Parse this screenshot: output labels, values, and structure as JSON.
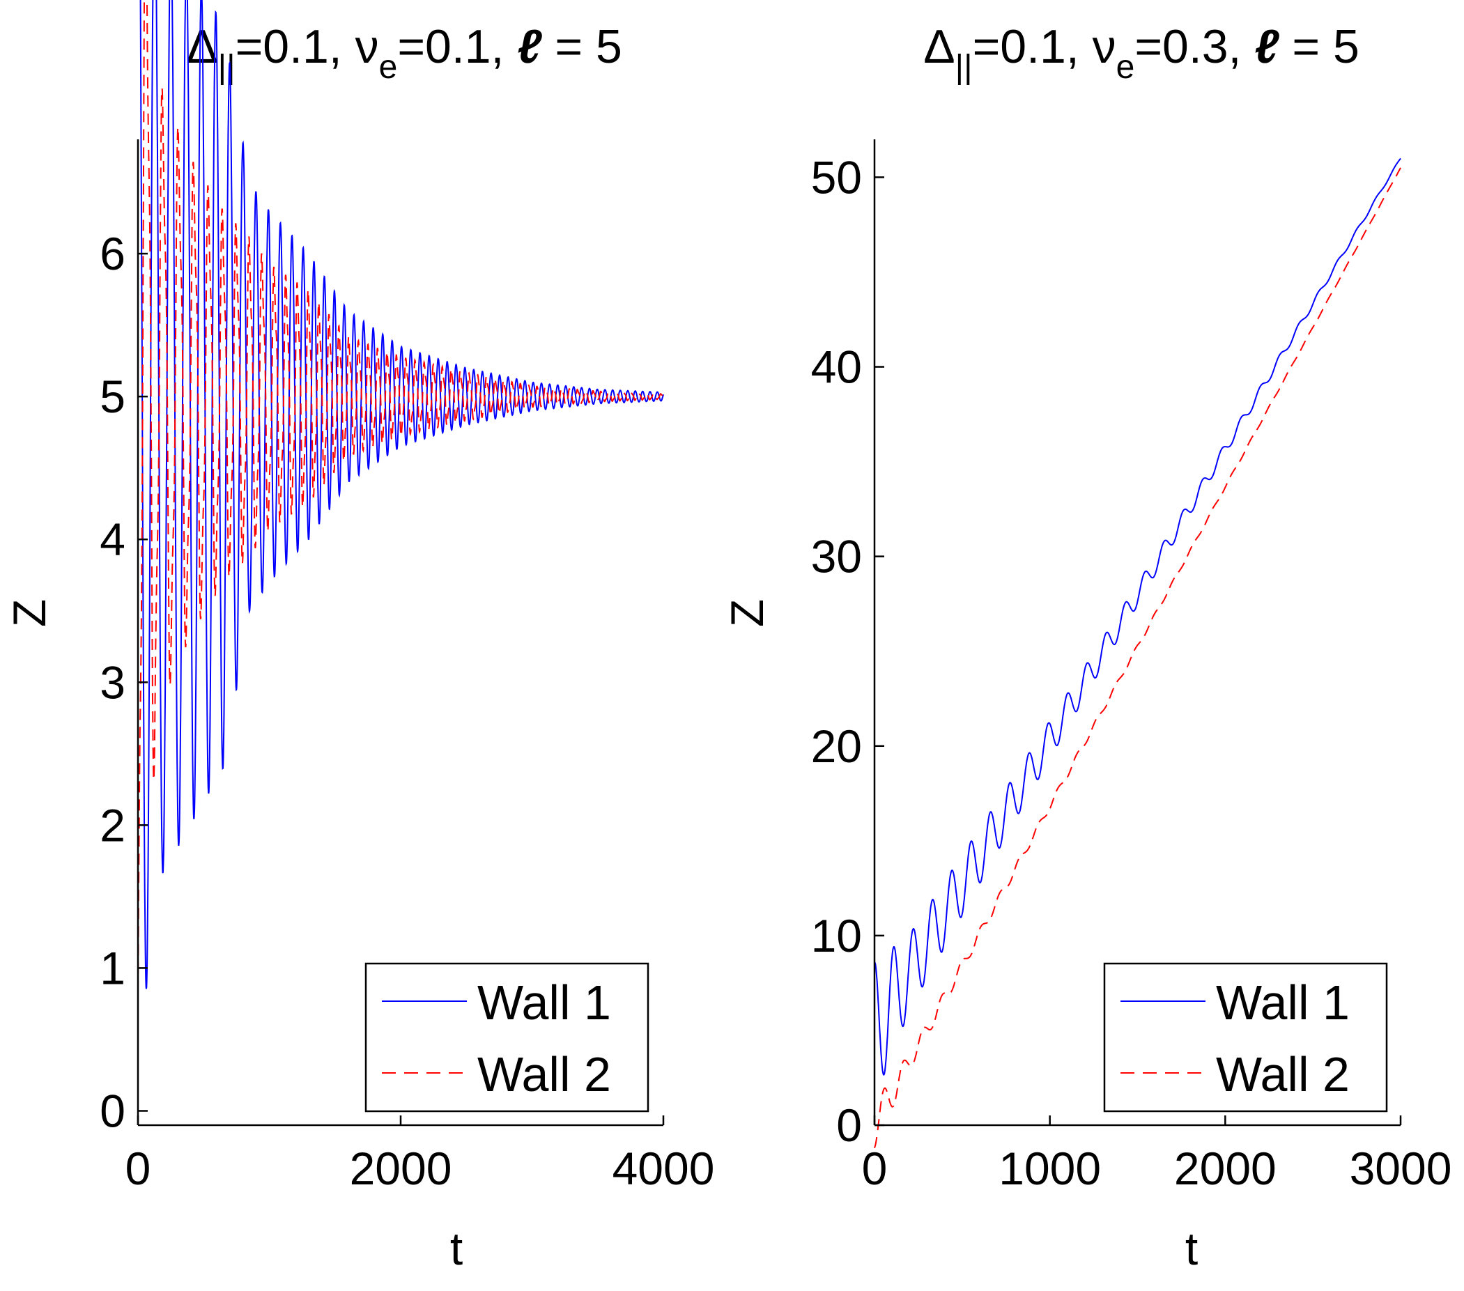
{
  "chart_data": [
    {
      "type": "line",
      "title": {
        "delta": "Δ",
        "delta_sub": "||",
        "p1": "=0.1, ",
        "nu": "ν",
        "nu_sub": "e",
        "p2": "=0.1, ",
        "ell": "ℓ",
        "p3": " = 5"
      },
      "xlabel": "t",
      "ylabel": "Z",
      "xlim": [
        0,
        4000
      ],
      "ylim": [
        -0.1,
        6.8
      ],
      "xticks": [
        0,
        2000,
        4000
      ],
      "xtick_labels": [
        "0",
        "2000",
        "4000"
      ],
      "yticks": [
        0,
        1,
        2,
        3,
        4,
        5,
        6
      ],
      "ytick_labels": [
        "0",
        "1",
        "2",
        "3",
        "4",
        "5",
        "6"
      ],
      "legend_position": "bottom-right",
      "series": [
        {
          "name": "Wall 1",
          "color": "#0000ff",
          "style": "solid",
          "model": {
            "kind": "decaying",
            "base": 5.0,
            "tmax": 4000,
            "envelope": [
              [
                0,
                4.7
              ],
              [
                150,
                3.4
              ],
              [
                400,
                3.0
              ],
              [
                650,
                2.6
              ],
              [
                850,
                1.5
              ],
              [
                1000,
                1.3
              ],
              [
                1300,
                1.0
              ],
              [
                1600,
                0.6
              ],
              [
                2000,
                0.35
              ],
              [
                2500,
                0.2
              ],
              [
                3000,
                0.1
              ],
              [
                3500,
                0.05
              ],
              [
                4000,
                0.03
              ]
            ],
            "periods": [
              [
                0,
                130
              ],
              [
                800,
                100
              ],
              [
                1500,
                75
              ],
              [
                4000,
                55
              ]
            ],
            "offset_mode": "wall1"
          }
        },
        {
          "name": "Wall 2",
          "color": "#ff0000",
          "style": "dashed",
          "model": {
            "kind": "decaying",
            "base": 5.0,
            "tmax": 4000,
            "envelope": [
              [
                0,
                4.9
              ],
              [
                150,
                2.4
              ],
              [
                400,
                1.8
              ],
              [
                650,
                1.4
              ],
              [
                850,
                1.2
              ],
              [
                1000,
                1.0
              ],
              [
                1300,
                0.8
              ],
              [
                1600,
                0.45
              ],
              [
                2000,
                0.3
              ],
              [
                2500,
                0.18
              ],
              [
                3000,
                0.08
              ],
              [
                3500,
                0.04
              ],
              [
                4000,
                0.02
              ]
            ],
            "periods": [
              [
                0,
                130
              ],
              [
                800,
                100
              ],
              [
                1500,
                75
              ],
              [
                4000,
                55
              ]
            ],
            "offset_mode": "wall2"
          }
        }
      ]
    },
    {
      "type": "line",
      "title": {
        "delta": "Δ",
        "delta_sub": "||",
        "p1": "=0.1, ",
        "nu": "ν",
        "nu_sub": "e",
        "p2": "=0.3, ",
        "ell": "ℓ",
        "p3": " = 5"
      },
      "xlabel": "t",
      "ylabel": "Z",
      "xlim": [
        0,
        3000
      ],
      "ylim": [
        0,
        52
      ],
      "xticks": [
        0,
        1000,
        2000,
        3000
      ],
      "xtick_labels": [
        "0",
        "1000",
        "2000",
        "3000"
      ],
      "yticks": [
        0,
        10,
        20,
        30,
        40,
        50
      ],
      "ytick_labels": [
        "0",
        "10",
        "20",
        "30",
        "40",
        "50"
      ],
      "legend_position": "bottom-right",
      "series": [
        {
          "name": "Wall 1",
          "color": "#0000ff",
          "style": "solid",
          "model": {
            "kind": "drift",
            "start": 5.0,
            "end": 51.0,
            "tmax": 3000,
            "envelope": [
              [
                0,
                3.6
              ],
              [
                200,
                2.0
              ],
              [
                500,
                1.6
              ],
              [
                800,
                1.2
              ],
              [
                1200,
                0.8
              ],
              [
                1600,
                0.5
              ],
              [
                2000,
                0.3
              ],
              [
                2500,
                0.15
              ],
              [
                3000,
                0.05
              ]
            ],
            "period": 110,
            "offset_mode": "wall1"
          }
        },
        {
          "name": "Wall 2",
          "color": "#ff0000",
          "style": "dashed",
          "model": {
            "kind": "drift",
            "start": 0.0,
            "end": 50.5,
            "tmax": 3000,
            "envelope": [
              [
                0,
                2.0
              ],
              [
                200,
                0.8
              ],
              [
                500,
                0.5
              ],
              [
                800,
                0.35
              ],
              [
                1200,
                0.25
              ],
              [
                1600,
                0.15
              ],
              [
                2000,
                0.1
              ],
              [
                2500,
                0.05
              ],
              [
                3000,
                0.02
              ]
            ],
            "period": 110,
            "offset_mode": "wall2"
          }
        }
      ]
    }
  ]
}
